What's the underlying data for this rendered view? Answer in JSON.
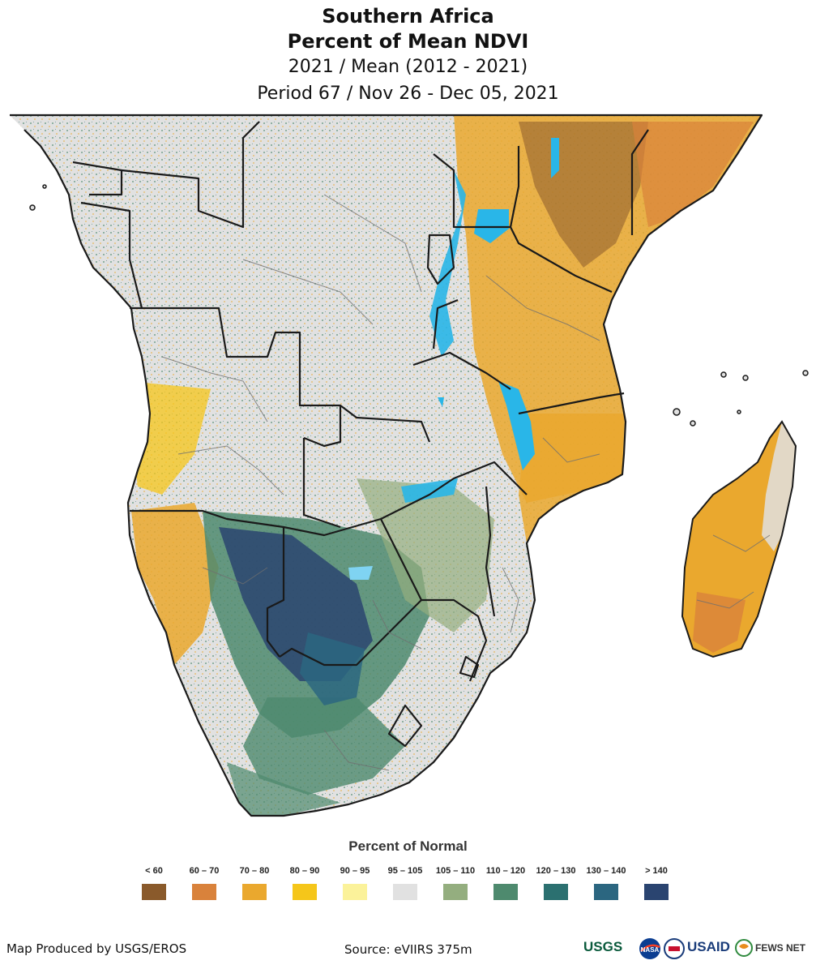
{
  "title": {
    "line1": "Southern Africa",
    "line2": "Percent of Mean NDVI",
    "line3": "2021 / Mean (2012 - 2021)",
    "line4": "Period 67 / Nov 26 - Dec 05, 2021"
  },
  "legend": {
    "title": "Percent of Normal",
    "items": [
      {
        "label": "< 60",
        "color": "#8a5a2b"
      },
      {
        "label": "60 – 70",
        "color": "#d9823b"
      },
      {
        "label": "70 – 80",
        "color": "#eaa82e"
      },
      {
        "label": "80 – 90",
        "color": "#f5c61a"
      },
      {
        "label": "90 – 95",
        "color": "#fbf29a"
      },
      {
        "label": "95 – 105",
        "color": "#e1e1e1"
      },
      {
        "label": "105 – 110",
        "color": "#94ae7f"
      },
      {
        "label": "110 – 120",
        "color": "#4e8a6e"
      },
      {
        "label": "120 – 130",
        "color": "#2b7070"
      },
      {
        "label": "130 – 140",
        "color": "#2b6680"
      },
      {
        "label": "> 140",
        "color": "#2a4470"
      }
    ]
  },
  "footer": {
    "produced_by": "Map Produced by USGS/EROS",
    "source": "Source: eVIIRS 375m"
  },
  "logos": {
    "usgs": "USGS",
    "nasa": "NASA",
    "usaid": "USAID",
    "fewsnet": "FEWS NET"
  },
  "colors": {
    "water": "#29b6e8",
    "border": "#1a1a1a",
    "admin": "#6f6f6f"
  }
}
